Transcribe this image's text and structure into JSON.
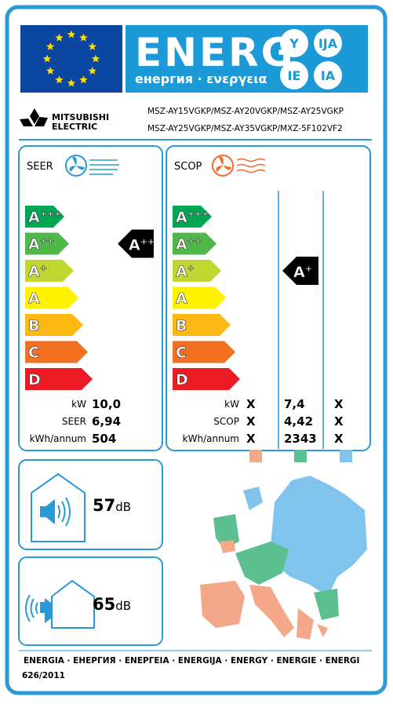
{
  "header": {
    "energy_word": "ENERG",
    "energy_subtitle": "енергия · ενεργεια",
    "suffixes": [
      "Y",
      "IJA",
      "IE",
      "IA"
    ]
  },
  "supplier": {
    "brand_line1": "MITSUBISHI",
    "brand_line2": "ELECTRIC",
    "models": [
      "MSZ-AY15VGKP/MSZ-AY20VGKP/MSZ-AY25VGKP",
      "MSZ-AY25VGKP/MSZ-AY35VGKP/MXZ-5F102VF2"
    ]
  },
  "classes": [
    {
      "letter": "A",
      "plus": "+++",
      "color": "#00a651"
    },
    {
      "letter": "A",
      "plus": "++",
      "color": "#50b848"
    },
    {
      "letter": "A",
      "plus": "+",
      "color": "#bfd730"
    },
    {
      "letter": "A",
      "color": "#fff200"
    },
    {
      "letter": "B",
      "color": "#fdb913"
    },
    {
      "letter": "C",
      "color": "#f37021"
    },
    {
      "letter": "D",
      "color": "#ed1c24"
    }
  ],
  "cooling": {
    "title": "SEER",
    "rating": {
      "letter": "A",
      "plus": "++"
    },
    "rows": [
      {
        "label": "kW",
        "value": "10,0"
      },
      {
        "label": "SEER",
        "value": "6,94"
      },
      {
        "label": "kWh/annum",
        "value": "504"
      }
    ]
  },
  "heating": {
    "title": "SCOP",
    "rating": {
      "letter": "A",
      "plus": "+"
    },
    "rows": [
      {
        "label": "kW",
        "values": [
          "X",
          "7,4",
          "X"
        ]
      },
      {
        "label": "SCOP",
        "values": [
          "X",
          "4,42",
          "X"
        ]
      },
      {
        "label": "kWh/annum",
        "values": [
          "X",
          "2343",
          "X"
        ]
      }
    ],
    "zone_colors": [
      "#f4a88a",
      "#5cbf8f",
      "#80c3ec"
    ]
  },
  "noise": [
    {
      "value": 57,
      "unit": "dB"
    },
    {
      "value": 65,
      "unit": "dB"
    }
  ],
  "footer": {
    "languages": "ENERGIA · ЕНЕРГИЯ · ΕΝΕΡΓΕΙΑ · ENERGIJA · ENERGY · ENERGIE · ENERGI",
    "regulation": "626/2011"
  }
}
